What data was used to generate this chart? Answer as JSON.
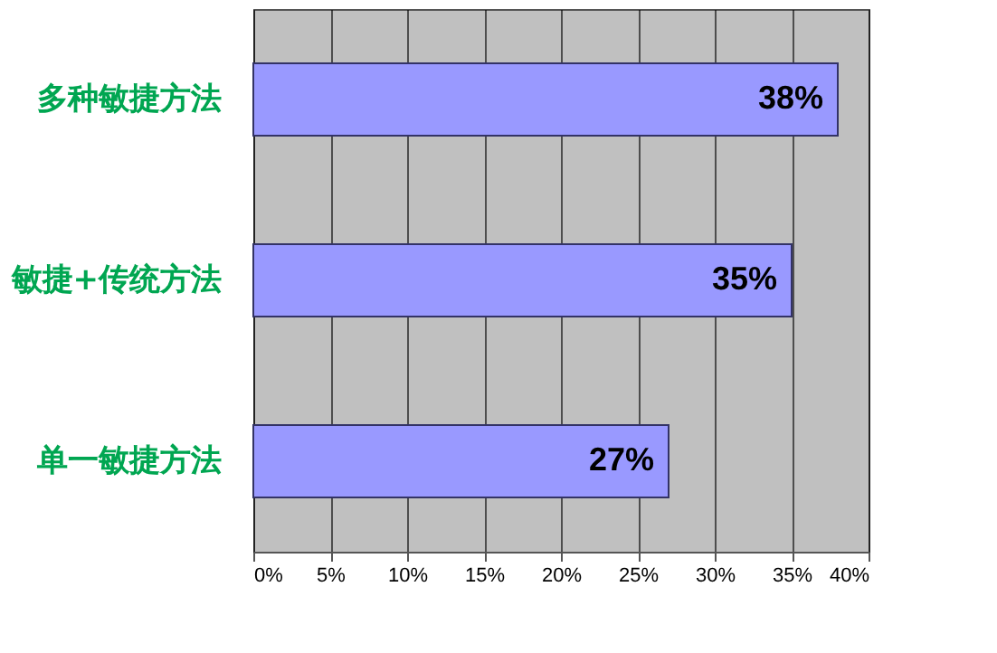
{
  "chart_data": {
    "type": "bar",
    "orientation": "horizontal",
    "categories": [
      "多种敏捷方法",
      "敏捷+传统方法",
      "单一敏捷方法"
    ],
    "values": [
      38,
      35,
      27
    ],
    "color": "#9999ff",
    "value_labels": [
      "38%",
      "35%",
      "27%"
    ],
    "xlim": [
      0,
      40
    ],
    "xticks": [
      {
        "value": 0,
        "label": "0%"
      },
      {
        "value": 5,
        "label": "5%"
      },
      {
        "value": 10,
        "label": "10%"
      },
      {
        "value": 15,
        "label": "15%"
      },
      {
        "value": 20,
        "label": "20%"
      },
      {
        "value": 25,
        "label": "25%"
      },
      {
        "value": 30,
        "label": "30%"
      },
      {
        "value": 35,
        "label": "35%"
      },
      {
        "value": 40,
        "label": "40%"
      }
    ],
    "grid": "x"
  }
}
